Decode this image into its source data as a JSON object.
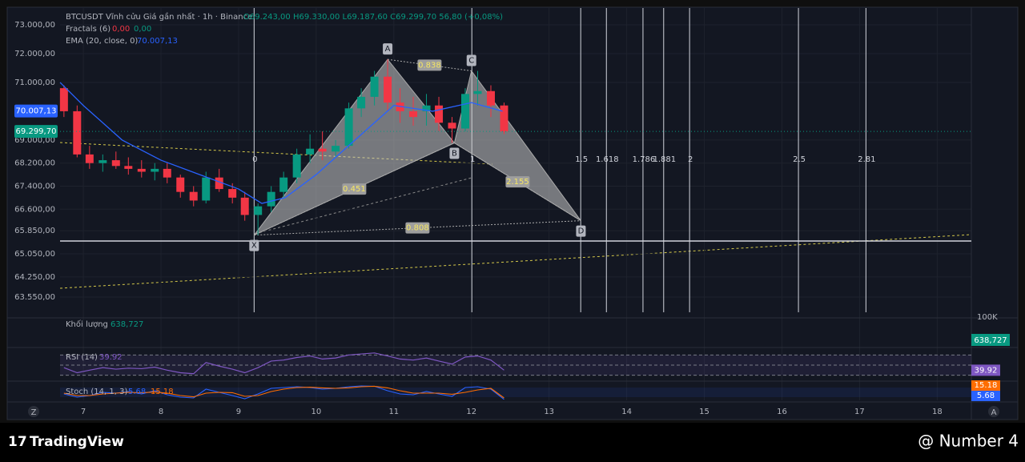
{
  "chart_data": {
    "type": "candlestick",
    "header": {
      "symbol": "BTCUSDT Vĩnh cửu Giá gần nhất · 1h · Binance",
      "ohlc": "O69.243,00 H69.330,00 L69.187,60 C69.299,70 56,80 (+0,08%)",
      "fractals": "Fractals (6)",
      "fractal_down": "0,00",
      "fractal_up": "0,00",
      "ema": "EMA (20, close, 0)",
      "ema_value": "70.007,13"
    },
    "xlim": [
      6.7,
      18.44
    ],
    "xticks": [
      7,
      8,
      9,
      10,
      11,
      12,
      13,
      14,
      15,
      16,
      17,
      18
    ],
    "ylim": [
      63022,
      73583
    ],
    "yticks": [
      {
        "value": 73000,
        "label": "73.000,00"
      },
      {
        "value": 72000,
        "label": "72.000,00"
      },
      {
        "value": 71000,
        "label": "71.000,00"
      },
      {
        "value": 69000,
        "label": "69.000,00"
      },
      {
        "value": 68200,
        "label": "68.200,00"
      },
      {
        "value": 67400,
        "label": "67.400,00"
      },
      {
        "value": 66600,
        "label": "66.600,00"
      },
      {
        "value": 65850,
        "label": "65.850,00"
      },
      {
        "value": 65050,
        "label": "65.050,00"
      },
      {
        "value": 64250,
        "label": "64.250,00"
      },
      {
        "value": 63550,
        "label": "63.550,00"
      }
    ],
    "price_labels": [
      {
        "value": 70007.13,
        "label": "70.007,13",
        "color": "#2962ff"
      },
      {
        "value": 69299.7,
        "label": "69.299,70",
        "color": "#089981"
      }
    ],
    "up_color": "#089981",
    "down_color": "#f23645",
    "candles": [
      {
        "x": 6.75,
        "open": 70800,
        "high": 70900,
        "low": 69800,
        "close": 70000
      },
      {
        "x": 6.92,
        "open": 70000,
        "high": 70200,
        "low": 68400,
        "close": 68500
      },
      {
        "x": 7.08,
        "open": 68500,
        "high": 68800,
        "low": 68000,
        "close": 68200
      },
      {
        "x": 7.25,
        "open": 68200,
        "high": 68500,
        "low": 67900,
        "close": 68300
      },
      {
        "x": 7.42,
        "open": 68300,
        "high": 68600,
        "low": 68000,
        "close": 68100
      },
      {
        "x": 7.58,
        "open": 68100,
        "high": 68400,
        "low": 67800,
        "close": 68000
      },
      {
        "x": 7.75,
        "open": 68000,
        "high": 68300,
        "low": 67700,
        "close": 67900
      },
      {
        "x": 7.92,
        "open": 67900,
        "high": 68200,
        "low": 67600,
        "close": 68000
      },
      {
        "x": 8.08,
        "open": 68000,
        "high": 68200,
        "low": 67500,
        "close": 67700
      },
      {
        "x": 8.25,
        "open": 67700,
        "high": 67800,
        "low": 67000,
        "close": 67200
      },
      {
        "x": 8.42,
        "open": 67200,
        "high": 67400,
        "low": 66700,
        "close": 66900
      },
      {
        "x": 8.58,
        "open": 66900,
        "high": 67900,
        "low": 66800,
        "close": 67700
      },
      {
        "x": 8.75,
        "open": 67700,
        "high": 68000,
        "low": 67200,
        "close": 67300
      },
      {
        "x": 8.92,
        "open": 67300,
        "high": 67500,
        "low": 66800,
        "close": 67000
      },
      {
        "x": 9.08,
        "open": 67000,
        "high": 67200,
        "low": 66200,
        "close": 66400
      },
      {
        "x": 9.25,
        "open": 66400,
        "high": 66800,
        "low": 65700,
        "close": 66700
      },
      {
        "x": 9.42,
        "open": 66700,
        "high": 67400,
        "low": 66500,
        "close": 67200
      },
      {
        "x": 9.58,
        "open": 67200,
        "high": 67900,
        "low": 67000,
        "close": 67700
      },
      {
        "x": 9.75,
        "open": 67700,
        "high": 68700,
        "low": 67500,
        "close": 68500
      },
      {
        "x": 9.92,
        "open": 68500,
        "high": 69200,
        "low": 68200,
        "close": 68700
      },
      {
        "x": 10.08,
        "open": 68700,
        "high": 69300,
        "low": 68300,
        "close": 68600
      },
      {
        "x": 10.25,
        "open": 68600,
        "high": 69000,
        "low": 68400,
        "close": 68800
      },
      {
        "x": 10.42,
        "open": 68800,
        "high": 70300,
        "low": 68700,
        "close": 70100
      },
      {
        "x": 10.58,
        "open": 70100,
        "high": 70800,
        "low": 69800,
        "close": 70500
      },
      {
        "x": 10.75,
        "open": 70500,
        "high": 71400,
        "low": 70200,
        "close": 71200
      },
      {
        "x": 10.92,
        "open": 71200,
        "high": 71800,
        "low": 70000,
        "close": 70300
      },
      {
        "x": 11.08,
        "open": 70300,
        "high": 70800,
        "low": 69600,
        "close": 70000
      },
      {
        "x": 11.25,
        "open": 70000,
        "high": 70500,
        "low": 69500,
        "close": 69800
      },
      {
        "x": 11.42,
        "open": 70000,
        "high": 70600,
        "low": 69500,
        "close": 70200
      },
      {
        "x": 11.58,
        "open": 70200,
        "high": 70500,
        "low": 69300,
        "close": 69600
      },
      {
        "x": 11.75,
        "open": 69600,
        "high": 69800,
        "low": 68900,
        "close": 69400
      },
      {
        "x": 11.92,
        "open": 69400,
        "high": 70800,
        "low": 69300,
        "close": 70600
      },
      {
        "x": 12.08,
        "open": 70600,
        "high": 71400,
        "low": 70200,
        "close": 70700
      },
      {
        "x": 12.25,
        "open": 70700,
        "high": 70900,
        "low": 69800,
        "close": 70200
      },
      {
        "x": 12.42,
        "open": 70200,
        "high": 70300,
        "low": 69200,
        "close": 69300
      }
    ],
    "ema": {
      "color": "#2962ff",
      "x": [
        6.7,
        7.0,
        7.5,
        8.0,
        8.5,
        9.0,
        9.3,
        9.6,
        10,
        10.5,
        11,
        11.5,
        12,
        12.4
      ],
      "values": [
        71000,
        70200,
        69000,
        68300,
        67800,
        67300,
        66800,
        67000,
        67800,
        69000,
        70200,
        70000,
        70300,
        70000
      ]
    },
    "support": 65494,
    "pattern": {
      "points": [
        {
          "label": "X",
          "x": 9.2,
          "y": 65700
        },
        {
          "label": "A",
          "x": 10.92,
          "y": 71800
        },
        {
          "label": "B",
          "x": 11.78,
          "y": 68900
        },
        {
          "label": "C",
          "x": 12.0,
          "y": 71400
        },
        {
          "label": "D",
          "x": 13.41,
          "y": 66200
        }
      ],
      "ratios": [
        "0.838",
        "0.451",
        "2.155",
        "0.808"
      ]
    },
    "fib_start": 9.2,
    "fib_end": 12.005,
    "fib_levels": [
      0,
      1,
      1.5,
      1.618,
      1.786,
      1.881,
      2,
      2.5,
      2.81
    ],
    "volume": {
      "label": "Khối lượng",
      "value": "638,727",
      "axis": "100K"
    },
    "rsi": {
      "label": "RSI (14)",
      "value": 39.92,
      "color": "#7e57c2",
      "values": [
        45,
        35,
        40,
        45,
        42,
        44,
        43,
        46,
        40,
        35,
        33,
        55,
        48,
        42,
        35,
        45,
        58,
        60,
        65,
        68,
        62,
        64,
        70,
        72,
        74,
        68,
        62,
        60,
        64,
        58,
        52,
        66,
        68,
        60,
        40
      ]
    },
    "stoch": {
      "label": "Stoch (14, 1, 3)",
      "k": 5.68,
      "d": 15.18,
      "k_color": "#2962ff",
      "d_color": "#ff6d00",
      "k_values": [
        40,
        20,
        30,
        50,
        45,
        55,
        40,
        60,
        35,
        20,
        15,
        70,
        50,
        30,
        10,
        40,
        75,
        80,
        85,
        80,
        70,
        75,
        85,
        90,
        88,
        60,
        40,
        35,
        55,
        40,
        25,
        80,
        85,
        70,
        6
      ],
      "d_values": [
        45,
        30,
        30,
        40,
        45,
        50,
        47,
        52,
        45,
        30,
        22,
        45,
        50,
        48,
        25,
        30,
        55,
        70,
        80,
        82,
        78,
        75,
        78,
        85,
        88,
        78,
        60,
        45,
        45,
        45,
        38,
        50,
        65,
        75,
        15
      ]
    },
    "footer": {
      "brand": "TradingView",
      "credit": "@ Number 4"
    }
  }
}
